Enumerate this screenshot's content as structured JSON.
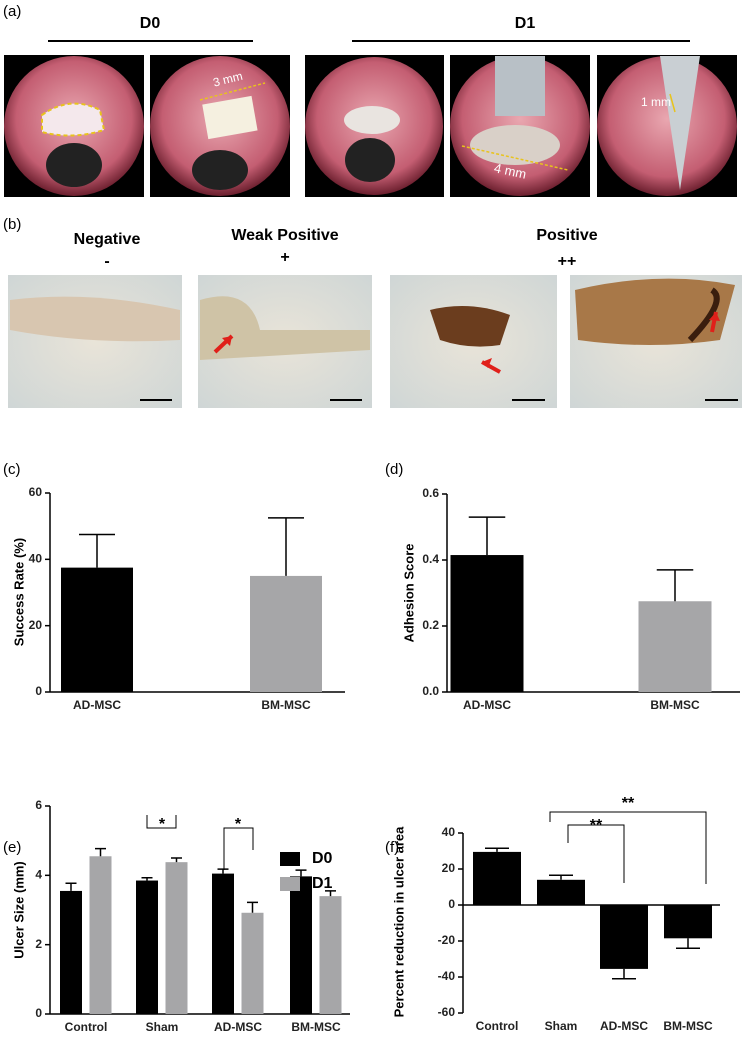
{
  "panels": {
    "a": {
      "label": "(a)",
      "groups": [
        "D0",
        "D1"
      ],
      "scale_labels": [
        "3 mm",
        "4 mm",
        "1 mm"
      ]
    },
    "b": {
      "label": "(b)",
      "columns": [
        {
          "title": "Negative",
          "score": "-"
        },
        {
          "title": "Weak Positive",
          "score": "+"
        },
        {
          "title": "Positive",
          "score": "++"
        }
      ]
    }
  },
  "chart_data": [
    {
      "type": "bar",
      "panel_label": "(c)",
      "y_label": "Success Rate (%)",
      "categories": [
        "AD-MSC",
        "BM-MSC"
      ],
      "values": [
        37.5,
        35
      ],
      "errors": [
        10,
        17.5
      ],
      "colors": [
        "#000000",
        "#a6a6a8"
      ],
      "ylim": [
        0,
        60
      ],
      "yticks": [
        0,
        20,
        40,
        60
      ]
    },
    {
      "type": "bar",
      "panel_label": "(d)",
      "y_label": "Adhesion Score",
      "categories": [
        "AD-MSC",
        "BM-MSC"
      ],
      "values": [
        0.415,
        0.275
      ],
      "errors": [
        0.115,
        0.095
      ],
      "colors": [
        "#000000",
        "#a6a6a8"
      ],
      "ylim": [
        0,
        0.6
      ],
      "yticks": [
        {
          "value": 0,
          "label": "0.0"
        },
        0.2,
        0.4,
        0.6
      ]
    },
    {
      "type": "grouped_bar",
      "panel_label": "(e)",
      "y_label": "Ulcer Size (mm)",
      "categories": [
        "Control",
        "Sham",
        "AD-MSC",
        "BM-MSC"
      ],
      "series": [
        {
          "name": "D0",
          "color": "#000000",
          "values": [
            3.55,
            3.85,
            4.05,
            3.97
          ],
          "errors": [
            0.22,
            0.08,
            0.13,
            0.18
          ]
        },
        {
          "name": "D1",
          "color": "#a6a6a8",
          "values": [
            4.55,
            4.38,
            2.92,
            3.4
          ],
          "errors": [
            0.22,
            0.12,
            0.3,
            0.15
          ]
        }
      ],
      "ylim": [
        0,
        6
      ],
      "yticks": [
        0,
        2,
        4,
        6
      ],
      "annotations": [
        "*",
        "*"
      ]
    },
    {
      "type": "bar",
      "panel_label": "(f)",
      "y_label": "Percent reduction in ulcer area",
      "categories": [
        "Control",
        "Sham",
        "AD-MSC",
        "BM-MSC"
      ],
      "values": [
        29.5,
        14,
        -35.5,
        -18.5
      ],
      "errors": [
        2,
        2.5,
        5.5,
        5.5
      ],
      "color": "#000000",
      "ylim": [
        -60,
        40
      ],
      "yticks": [
        -60,
        -40,
        -20,
        0,
        20,
        40
      ],
      "annotations": [
        "**",
        "**"
      ]
    }
  ]
}
